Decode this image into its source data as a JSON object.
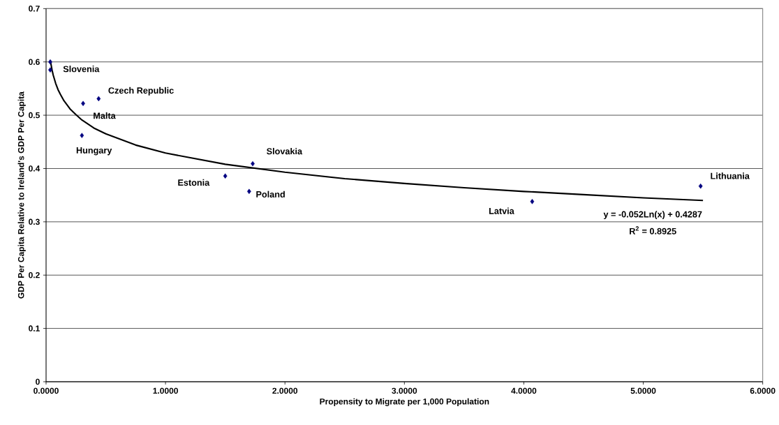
{
  "chart_data": {
    "type": "scatter",
    "xlabel": "Propensity to Migrate per 1,000 Population",
    "ylabel": "GDP Per Capita Relative to Ireland's GDP Per Capita",
    "xlim": [
      0,
      6
    ],
    "ylim": [
      0,
      0.7
    ],
    "xticks": [
      {
        "value": 0,
        "label": "0.0000"
      },
      {
        "value": 1,
        "label": "1.0000"
      },
      {
        "value": 2,
        "label": "2.0000"
      },
      {
        "value": 3,
        "label": "3.0000"
      },
      {
        "value": 4,
        "label": "4.0000"
      },
      {
        "value": 5,
        "label": "5.0000"
      },
      {
        "value": 6,
        "label": "6.0000"
      }
    ],
    "yticks": [
      0,
      0.1,
      0.2,
      0.3,
      0.4,
      0.5,
      0.6,
      0.7
    ],
    "grid": "y",
    "marker": "diamond",
    "series": [
      {
        "color": "#000080",
        "x": [
          0.035,
          0.035,
          0.44,
          0.31,
          0.3,
          1.73,
          1.5,
          1.7,
          4.07,
          5.48
        ],
        "values": [
          0.6,
          0.585,
          0.531,
          0.522,
          0.462,
          0.409,
          0.386,
          0.357,
          0.338,
          0.367
        ]
      },
      {
        "type": "line",
        "color": "#000000",
        "marker": "none",
        "line_style": "solid",
        "x": [
          0.035,
          0.05,
          0.06,
          0.08,
          0.1,
          0.12,
          0.15,
          0.2,
          0.25,
          0.3,
          0.4,
          0.5,
          0.75,
          1,
          1.5,
          2,
          2.5,
          3,
          3.5,
          4,
          4.5,
          5,
          5.5
        ],
        "values": [
          0.603,
          0.585,
          0.575,
          0.56,
          0.548,
          0.539,
          0.527,
          0.512,
          0.501,
          0.491,
          0.476,
          0.465,
          0.444,
          0.429,
          0.408,
          0.393,
          0.381,
          0.372,
          0.364,
          0.357,
          0.351,
          0.345,
          0.34
        ]
      }
    ],
    "annotations": [
      {
        "text": "Slovenia",
        "x": 0.035,
        "y": 0.6
      },
      {
        "text": "Czech Republic",
        "x": 0.44,
        "y": 0.531
      },
      {
        "text": "Malta",
        "x": 0.31,
        "y": 0.522
      },
      {
        "text": "Hungary",
        "x": 0.3,
        "y": 0.462
      },
      {
        "text": "Slovakia",
        "x": 1.73,
        "y": 0.409
      },
      {
        "text": "Estonia",
        "x": 1.5,
        "y": 0.386
      },
      {
        "text": "Poland",
        "x": 1.7,
        "y": 0.357
      },
      {
        "text": "Latvia",
        "x": 4.07,
        "y": 0.338
      },
      {
        "text": "Lithuania",
        "x": 5.48,
        "y": 0.367
      },
      "y = -0.052Ln(x) + 0.4287",
      "R$^{2}$ = 0.8925"
    ]
  }
}
